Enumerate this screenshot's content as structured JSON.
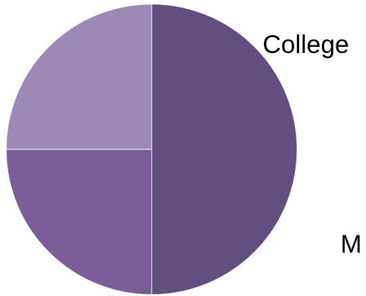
{
  "chart_data": {
    "type": "pie",
    "slices": [
      {
        "label": "",
        "value": 50,
        "color": "#634E80"
      },
      {
        "label": "",
        "value": 25,
        "color": "#7A5D99"
      },
      {
        "label": "",
        "value": 25,
        "color": "#9D8AB4"
      }
    ],
    "visible_labels": [
      "College",
      "M"
    ],
    "legend": "none"
  }
}
